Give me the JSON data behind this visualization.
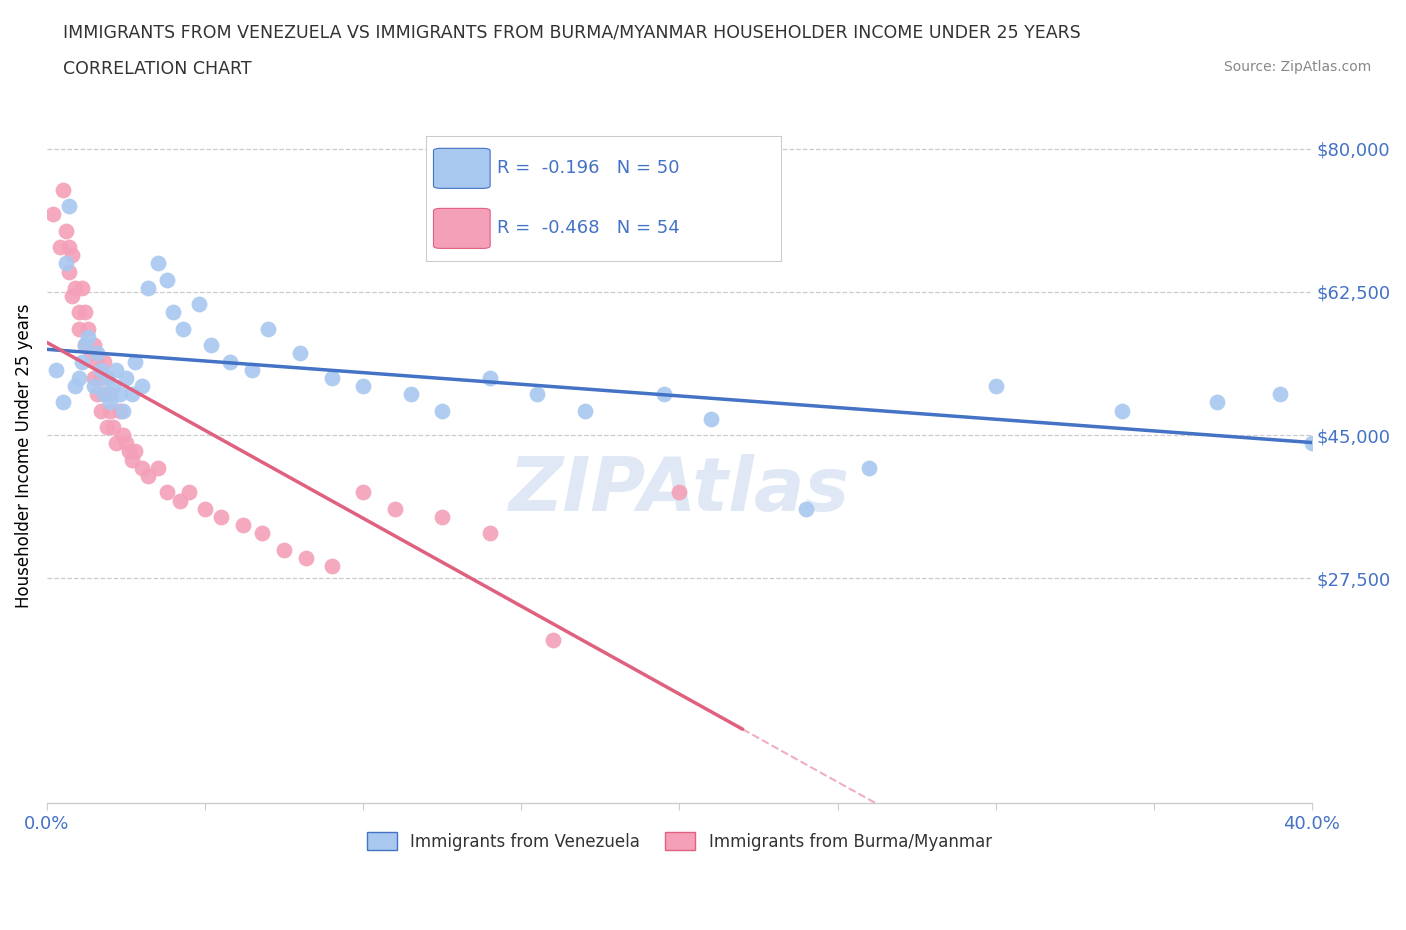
{
  "title_line1": "IMMIGRANTS FROM VENEZUELA VS IMMIGRANTS FROM BURMA/MYANMAR HOUSEHOLDER INCOME UNDER 25 YEARS",
  "title_line2": "CORRELATION CHART",
  "source_text": "Source: ZipAtlas.com",
  "ylabel": "Householder Income Under 25 years",
  "x_min": 0.0,
  "x_max": 0.4,
  "y_min": 0,
  "y_max": 85000,
  "y_ticks": [
    27500,
    45000,
    62500,
    80000
  ],
  "y_tick_labels": [
    "$27,500",
    "$45,000",
    "$62,500",
    "$80,000"
  ],
  "x_ticks": [
    0.0,
    0.05,
    0.1,
    0.15,
    0.2,
    0.25,
    0.3,
    0.35,
    0.4
  ],
  "color_venezuela": "#A8C8F0",
  "color_burma": "#F4A0B8",
  "line_color_venezuela": "#4472C4",
  "line_color_burma": "#E06080",
  "text_color_blue": "#4472C4",
  "R_venezuela": -0.196,
  "N_venezuela": 50,
  "R_burma": -0.468,
  "N_burma": 54,
  "venezuela_x": [
    0.003,
    0.005,
    0.006,
    0.007,
    0.009,
    0.01,
    0.011,
    0.012,
    0.013,
    0.015,
    0.016,
    0.017,
    0.018,
    0.019,
    0.02,
    0.021,
    0.022,
    0.023,
    0.024,
    0.025,
    0.027,
    0.028,
    0.03,
    0.032,
    0.035,
    0.038,
    0.04,
    0.043,
    0.048,
    0.052,
    0.058,
    0.065,
    0.07,
    0.08,
    0.09,
    0.1,
    0.115,
    0.125,
    0.14,
    0.155,
    0.17,
    0.195,
    0.21,
    0.24,
    0.26,
    0.3,
    0.34,
    0.37,
    0.39,
    0.4
  ],
  "venezuela_y": [
    53000,
    49000,
    66000,
    73000,
    51000,
    52000,
    54000,
    56000,
    57000,
    51000,
    55000,
    53000,
    50000,
    52000,
    49000,
    51000,
    53000,
    50000,
    48000,
    52000,
    50000,
    54000,
    51000,
    63000,
    66000,
    64000,
    60000,
    58000,
    61000,
    56000,
    54000,
    53000,
    58000,
    55000,
    52000,
    51000,
    50000,
    48000,
    52000,
    50000,
    48000,
    50000,
    47000,
    36000,
    41000,
    51000,
    48000,
    49000,
    50000,
    44000
  ],
  "burma_x": [
    0.002,
    0.004,
    0.005,
    0.006,
    0.007,
    0.007,
    0.008,
    0.008,
    0.009,
    0.01,
    0.01,
    0.011,
    0.012,
    0.012,
    0.013,
    0.014,
    0.015,
    0.015,
    0.016,
    0.016,
    0.017,
    0.017,
    0.018,
    0.018,
    0.019,
    0.02,
    0.02,
    0.021,
    0.022,
    0.023,
    0.024,
    0.025,
    0.026,
    0.027,
    0.028,
    0.03,
    0.032,
    0.035,
    0.038,
    0.042,
    0.045,
    0.05,
    0.055,
    0.062,
    0.068,
    0.075,
    0.082,
    0.09,
    0.1,
    0.11,
    0.125,
    0.14,
    0.16,
    0.2
  ],
  "burma_y": [
    72000,
    68000,
    75000,
    70000,
    68000,
    65000,
    67000,
    62000,
    63000,
    60000,
    58000,
    63000,
    56000,
    60000,
    58000,
    55000,
    56000,
    52000,
    54000,
    50000,
    52000,
    48000,
    50000,
    54000,
    46000,
    50000,
    48000,
    46000,
    44000,
    48000,
    45000,
    44000,
    43000,
    42000,
    43000,
    41000,
    40000,
    41000,
    38000,
    37000,
    38000,
    36000,
    35000,
    34000,
    33000,
    31000,
    30000,
    29000,
    38000,
    36000,
    35000,
    33000,
    20000,
    38000
  ]
}
